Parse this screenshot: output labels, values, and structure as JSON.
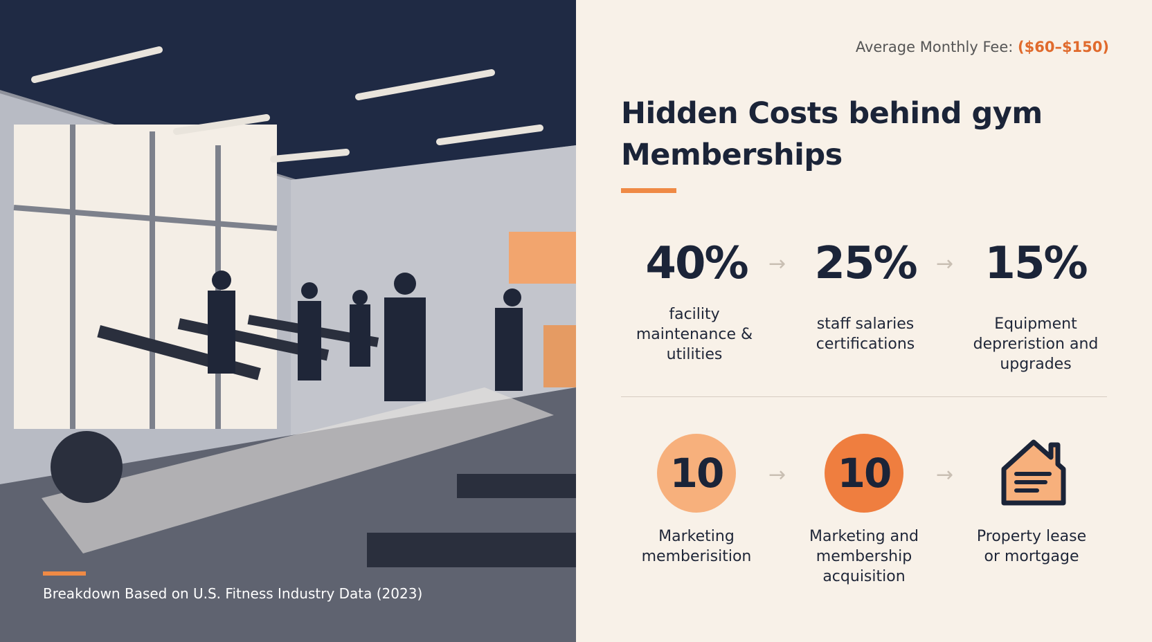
{
  "header": {
    "fee_label": "Average Monthly Fee:",
    "fee_range": "($60–$150)"
  },
  "title": "Hidden Costs behind gym Memberships",
  "caption": "Breakdown Based on U.S. Fitness Industry Data (2023)",
  "stats": [
    {
      "value": "40%",
      "label": "facility maintenance & utilities"
    },
    {
      "value": "25%",
      "label": "staff salaries certifications"
    },
    {
      "value": "15%",
      "label": "Equipment depreristion and upgrades"
    }
  ],
  "items": [
    {
      "value": "10",
      "label": "Marketing memberisition"
    },
    {
      "value": "10",
      "label": "Marketing and membership acquisition"
    },
    {
      "label": "Property lease or mortgage"
    }
  ]
}
